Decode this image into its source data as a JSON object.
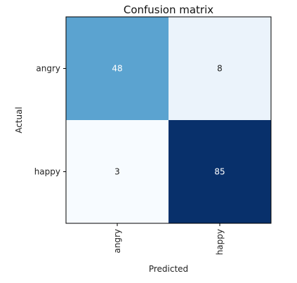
{
  "chart_data": {
    "type": "heatmap",
    "title": "Confusion matrix",
    "xlabel": "Predicted",
    "ylabel": "Actual",
    "x_categories": [
      "angry",
      "happy"
    ],
    "y_categories": [
      "angry",
      "happy"
    ],
    "values": [
      [
        48,
        8
      ],
      [
        3,
        85
      ]
    ],
    "colormap": "Blues",
    "colors": {
      "low": "#f7fbff",
      "high": "#08306b",
      "text_dark": "#222222",
      "text_light": "#ffffff"
    }
  }
}
